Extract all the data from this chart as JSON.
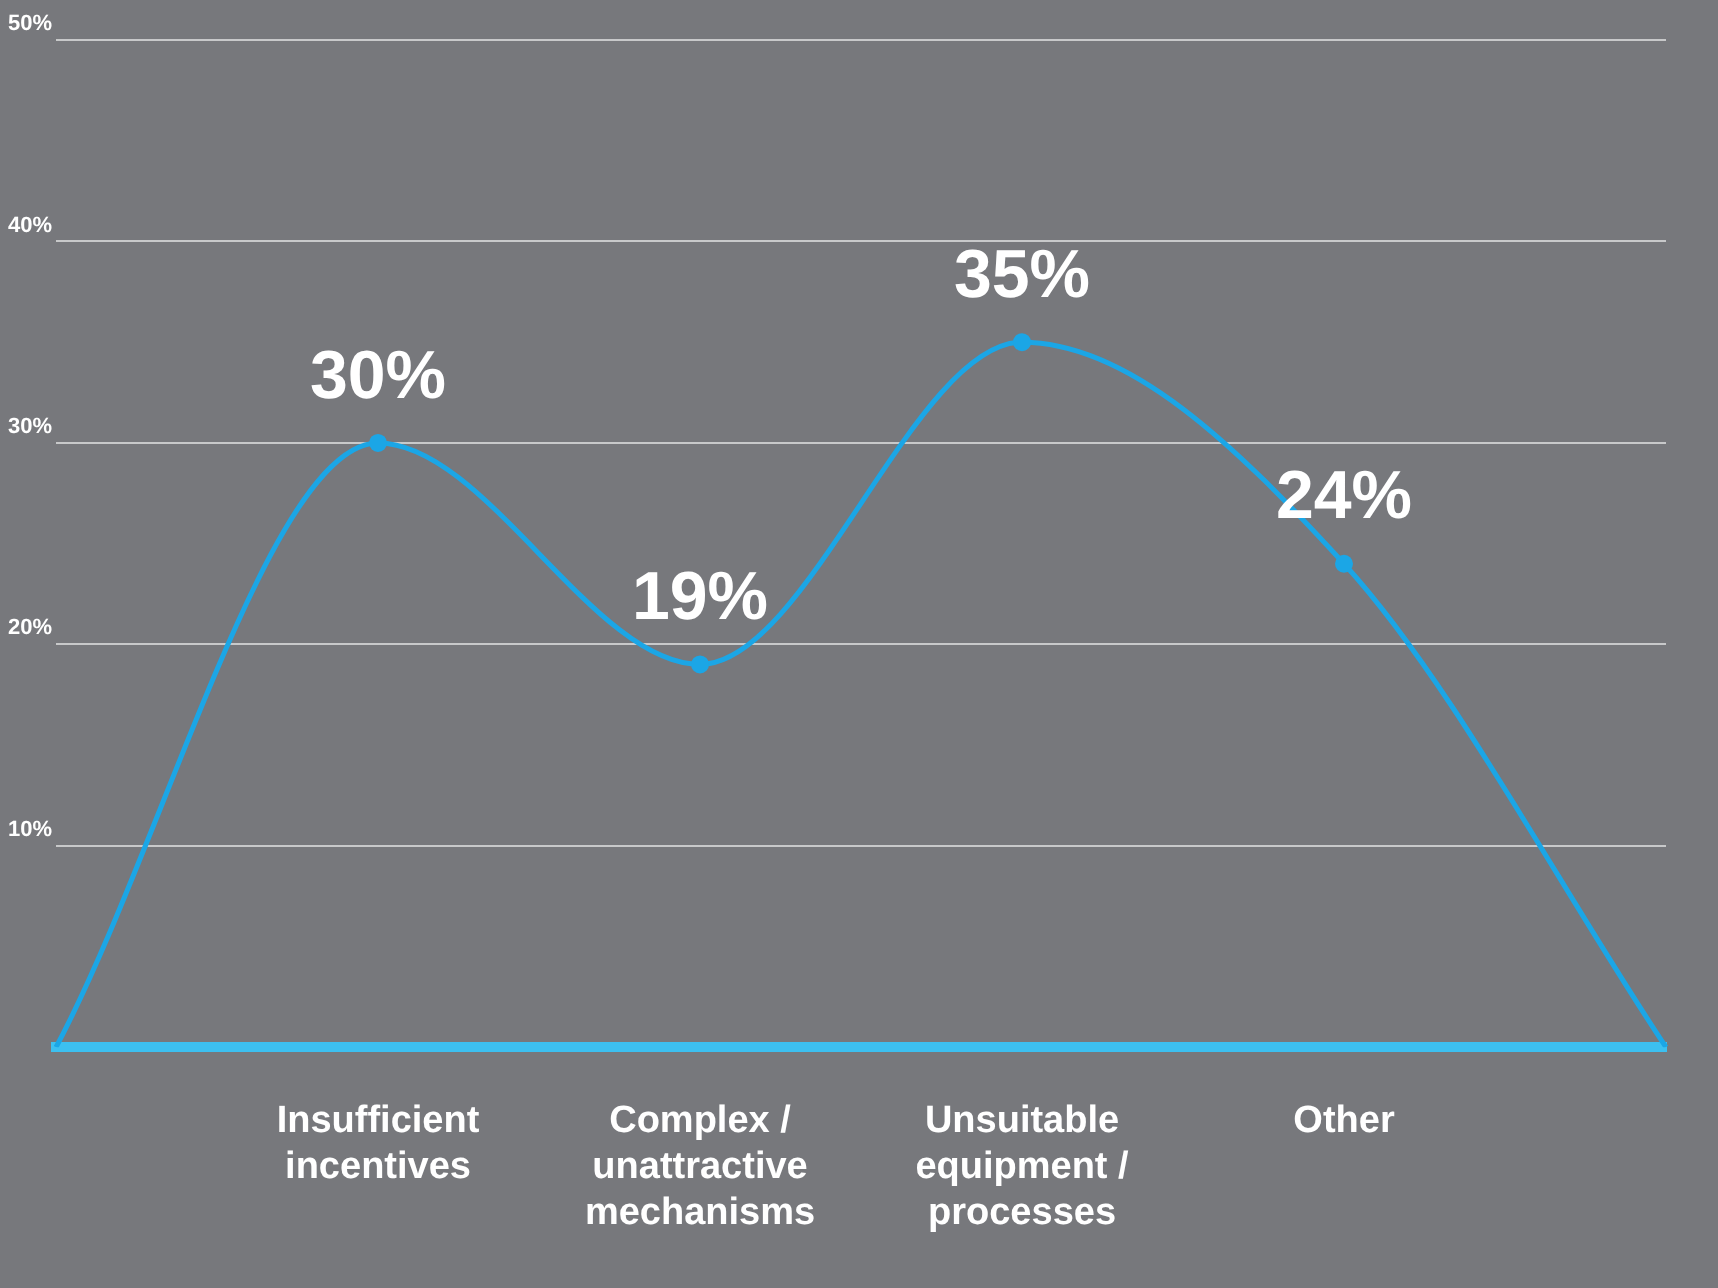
{
  "chart_data": {
    "type": "line",
    "categories": [
      null,
      "Insufficient incentives",
      "Complex / unattractive mechanisms",
      "Unsuitable equipment / processes",
      "Other",
      null
    ],
    "series": [
      {
        "color": "#1ba6e6",
        "values": [
          0,
          30,
          19,
          35,
          24,
          0
        ],
        "value_labels": [
          null,
          "30%",
          "19%",
          "35%",
          "24%",
          null
        ]
      }
    ],
    "ylim": [
      0,
      50
    ],
    "yticks": [
      {
        "value": 10,
        "label": "10%"
      },
      {
        "value": 20,
        "label": "20%"
      },
      {
        "value": 30,
        "label": "30%"
      },
      {
        "value": 40,
        "label": "40%"
      },
      {
        "value": 50,
        "label": "50%"
      }
    ],
    "grid": "y",
    "marker": "circle",
    "line_style": "solid",
    "legend": false
  }
}
